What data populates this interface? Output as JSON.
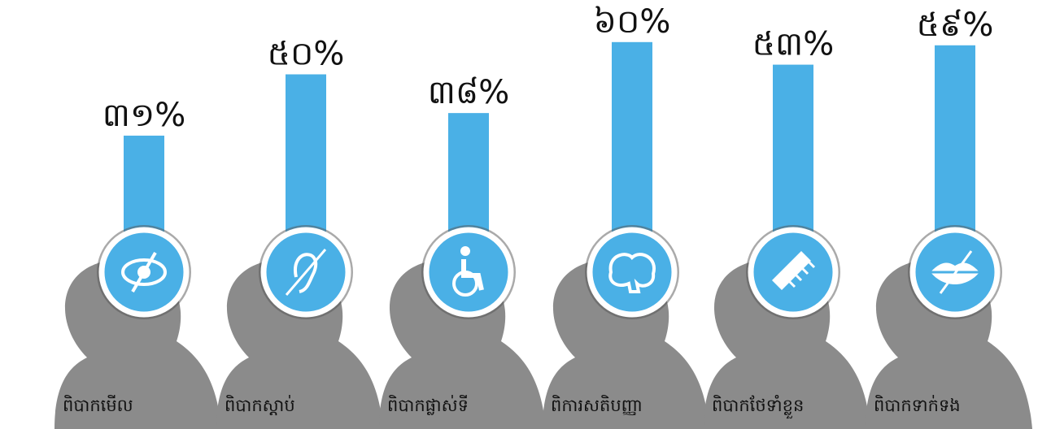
{
  "chart_data": {
    "type": "bar",
    "categories": [
      "ពិបាកមើល",
      "ពិបាកស្តាប់",
      "ពិបាកផ្លាស់ទី",
      "ពិការសតិបញ្ញា",
      "ពិបាកថែទាំខ្លួន",
      "ពិបាកទាក់ទង"
    ],
    "values": [
      31,
      50,
      38,
      60,
      53,
      59
    ],
    "value_labels": [
      "៣១%",
      "៥០%",
      "៣៨%",
      "៦០%",
      "៥៣%",
      "៥៩%"
    ],
    "color": "#4ab0e6"
  }
}
